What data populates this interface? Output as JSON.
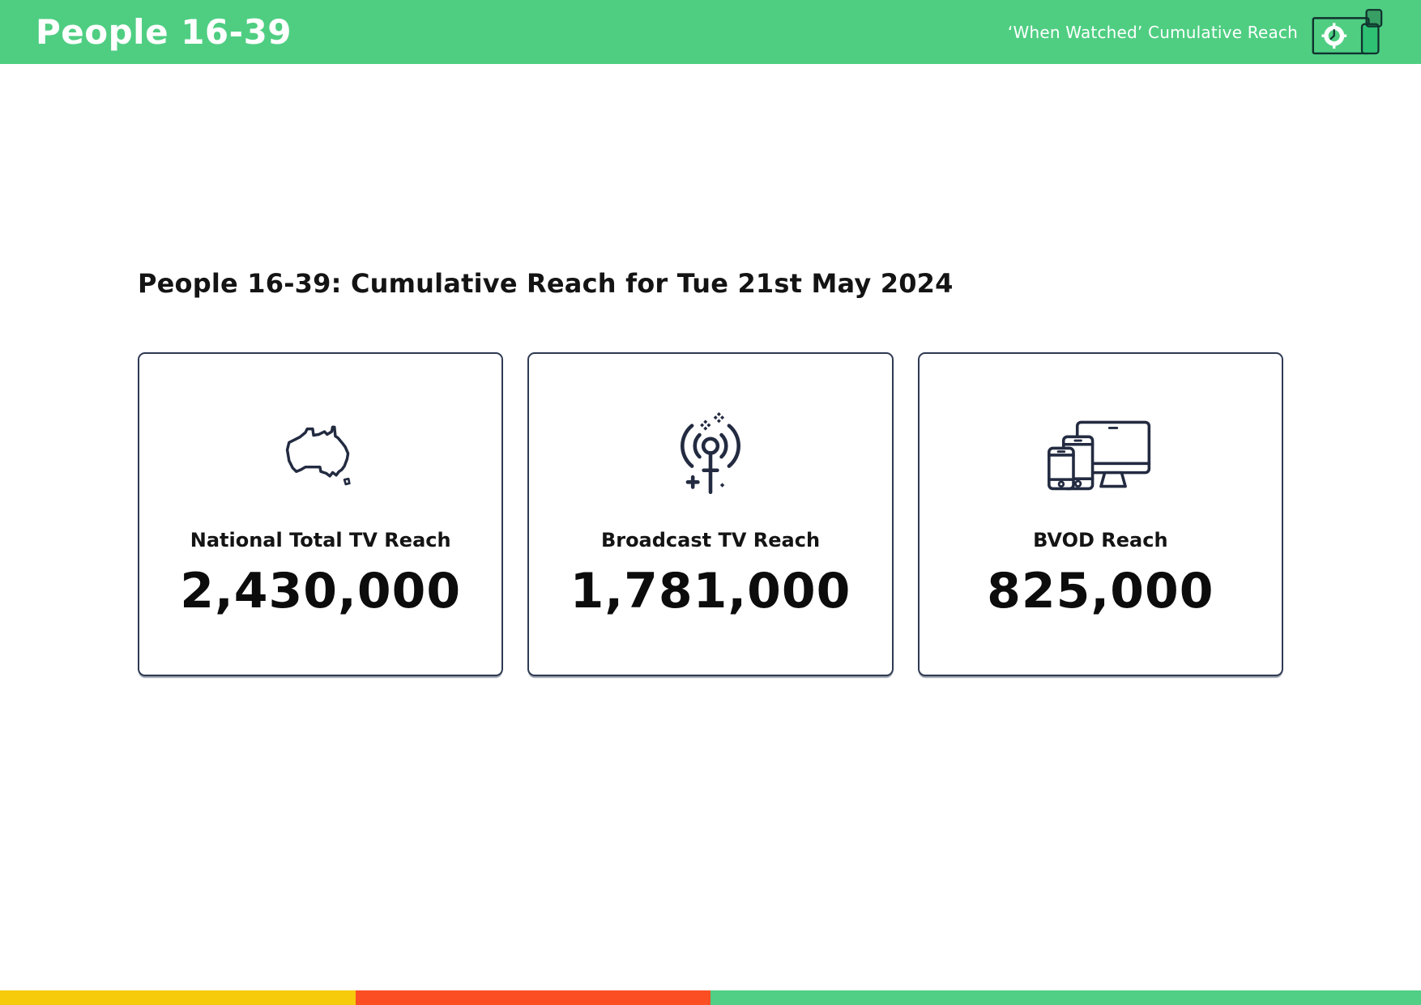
{
  "header": {
    "title": "People 16-39",
    "subtitle": "‘When Watched’ Cumulative Reach",
    "logo": "clock-tv-and-phone-logo"
  },
  "main": {
    "heading": "People 16-39: Cumulative Reach for Tue 21st May 2024",
    "cards": [
      {
        "icon": "australia-map-icon",
        "label": "National Total TV Reach",
        "value": "2,430,000"
      },
      {
        "icon": "broadcast-antenna-icon",
        "label": "Broadcast TV Reach",
        "value": "1,781,000"
      },
      {
        "icon": "devices-icon",
        "label": "BVOD Reach",
        "value": "825,000"
      }
    ]
  },
  "chart_data": {
    "type": "table",
    "title": "People 16-39: Cumulative Reach for Tue 21st May 2024",
    "categories": [
      "National Total TV Reach",
      "Broadcast TV Reach",
      "BVOD Reach"
    ],
    "values": [
      2430000,
      1781000,
      825000
    ],
    "note": "'When Watched' Cumulative Reach KPI cards"
  },
  "colors": {
    "green": "#4FCE82",
    "ink": "#232B41",
    "footer_yellow": "#F5CB0C",
    "footer_red": "#FB4E23",
    "footer_green": "#50CF85"
  },
  "footer": {
    "segments": [
      {
        "name": "yellow-segment",
        "color": "#F5CB0C",
        "width_pct": 25
      },
      {
        "name": "red-segment",
        "color": "#FB4E23",
        "width_pct": 25
      },
      {
        "name": "green-segment",
        "color": "#50CF85",
        "width_pct": 50
      }
    ]
  }
}
